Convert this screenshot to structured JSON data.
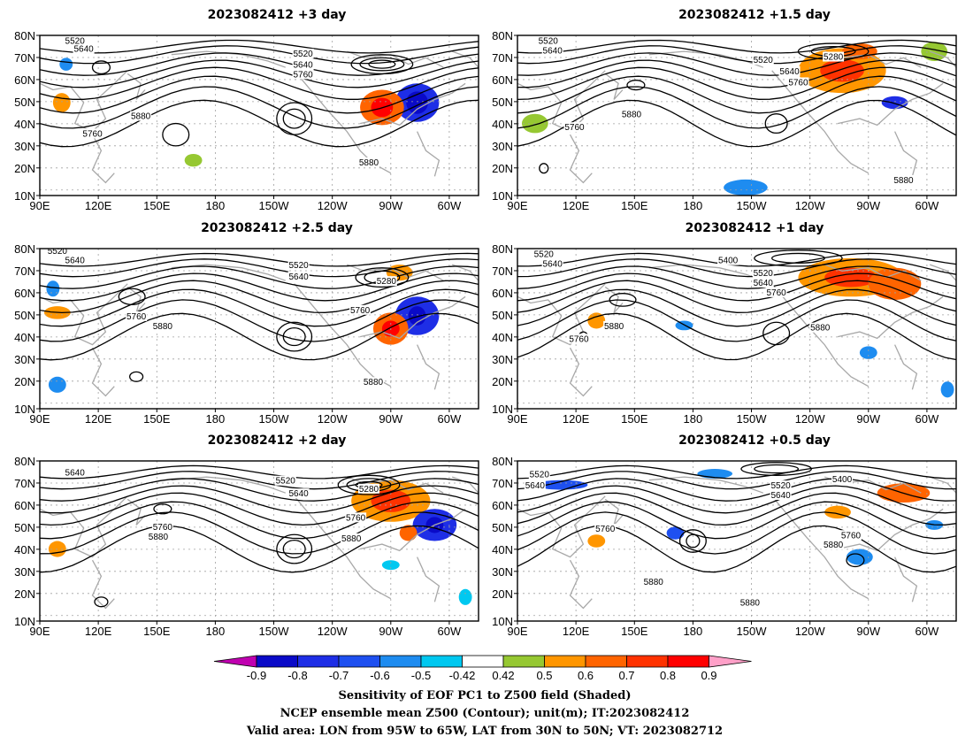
{
  "panels": [
    {
      "title": "2023082412 +3 day",
      "labels": [
        "5520",
        "5640",
        "5520",
        "5640",
        "5760",
        "5880",
        "5760",
        "5880"
      ]
    },
    {
      "title": "2023082412 +1.5 day",
      "labels": [
        "5520",
        "5640",
        "5280",
        "5520",
        "5640",
        "5760",
        "5880",
        "5760",
        "5880"
      ]
    },
    {
      "title": "2023082412 +2.5 day",
      "labels": [
        "5520",
        "5640",
        "5520",
        "5640",
        "5280",
        "5760",
        "5760",
        "5880",
        "5880"
      ]
    },
    {
      "title": "2023082412 +1 day",
      "labels": [
        "5520",
        "5640",
        "5400",
        "5520",
        "5640",
        "5760",
        "5760",
        "5880",
        "5880"
      ]
    },
    {
      "title": "2023082412 +2 day",
      "labels": [
        "5640",
        "5520",
        "5640",
        "5280",
        "5760",
        "5880",
        "5760",
        "5880"
      ]
    },
    {
      "title": "2023082412 +0.5 day",
      "labels": [
        "5520",
        "5640",
        "5400",
        "5520",
        "5640",
        "5760",
        "5880",
        "5760",
        "5880",
        "5880"
      ]
    }
  ],
  "axes": {
    "x_ticks": [
      "90E",
      "120E",
      "150E",
      "180",
      "150W",
      "120W",
      "90W",
      "60W"
    ],
    "y_ticks": [
      "80N",
      "70N",
      "60N",
      "50N",
      "40N",
      "30N",
      "20N",
      "10N"
    ]
  },
  "colorbar": {
    "levels": [
      "-0.9",
      "-0.8",
      "-0.7",
      "-0.6",
      "-0.5",
      "-0.42",
      "0.42",
      "0.5",
      "0.6",
      "0.7",
      "0.8",
      "0.9"
    ],
    "colors": [
      "#c000b0",
      "#0a0ac8",
      "#1e2ee6",
      "#1e50f0",
      "#1e8cf0",
      "#00c8f0",
      "#ffffff",
      "#96c832",
      "#ff9600",
      "#ff6400",
      "#ff3200",
      "#ff0000",
      "#ffa0c8"
    ]
  },
  "footer": {
    "line1": "Sensitivity of EOF PC1 to Z500 field (Shaded)",
    "line2": "NCEP ensemble mean Z500 (Contour); unit(m); IT:2023082412",
    "line3": "Valid area: LON from 95W to 65W, LAT from 30N to 50N; VT: 2023082712"
  },
  "colors": {
    "contour": "#000000",
    "coast": "#a8a8a8",
    "grid": "#a0a0a0"
  }
}
